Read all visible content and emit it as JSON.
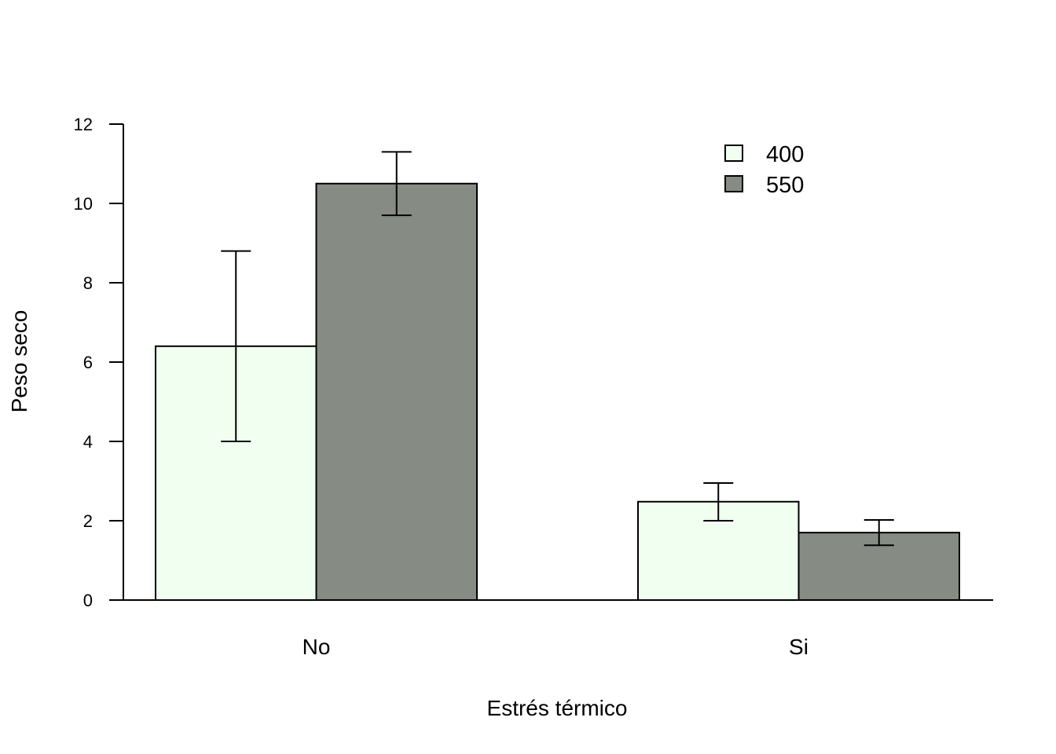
{
  "chart_data": {
    "type": "bar",
    "title": "",
    "xlabel": "Estrés térmico",
    "ylabel": "Peso seco",
    "categories": [
      "No",
      "Si"
    ],
    "series": [
      {
        "name": "400",
        "color": "#f0fff0",
        "values": [
          6.4,
          2.48
        ],
        "error_low": [
          4.0,
          2.0
        ],
        "error_high": [
          8.8,
          2.95
        ]
      },
      {
        "name": "550",
        "color": "#868b83",
        "values": [
          10.5,
          1.7
        ],
        "error_low": [
          9.7,
          1.38
        ],
        "error_high": [
          11.3,
          2.02
        ]
      }
    ],
    "ylim": [
      0,
      12
    ],
    "yticks": [
      "0",
      "2",
      "4",
      "6",
      "8",
      "10",
      "12"
    ],
    "grid": false,
    "legend_position": "top-right"
  }
}
